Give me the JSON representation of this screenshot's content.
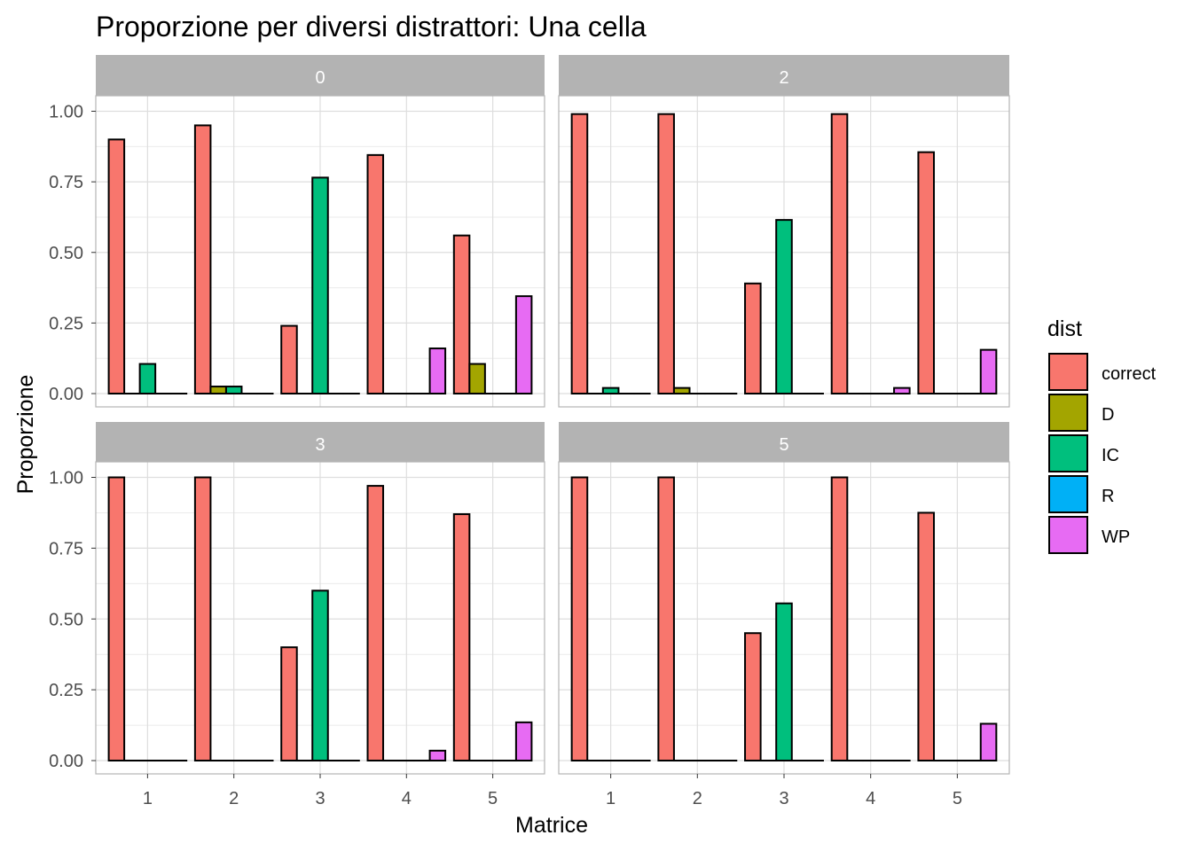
{
  "chart_data": {
    "type": "bar",
    "title": "Proporzione per diversi distrattori: Una cella",
    "xlabel": "Matrice",
    "ylabel": "Proporzione",
    "categories": [
      "1",
      "2",
      "3",
      "4",
      "5"
    ],
    "yticks": [
      "0.00",
      "0.25",
      "0.50",
      "0.75",
      "1.00"
    ],
    "ylim": [
      0,
      1.1
    ],
    "grid": true,
    "legend": {
      "title": "dist",
      "placement": "right",
      "entries": [
        {
          "label": "correct",
          "color": "#F8766D"
        },
        {
          "label": "D",
          "color": "#A3A500"
        },
        {
          "label": "IC",
          "color": "#00BF7D"
        },
        {
          "label": "R",
          "color": "#00B0F6"
        },
        {
          "label": "WP",
          "color": "#E76BF3"
        }
      ]
    },
    "panels": [
      {
        "label": "0",
        "series": [
          {
            "name": "correct",
            "values": [
              0.9,
              0.95,
              0.24,
              0.845,
              0.56
            ]
          },
          {
            "name": "D",
            "values": [
              0.0,
              0.025,
              0.0,
              0.0,
              0.105
            ]
          },
          {
            "name": "IC",
            "values": [
              0.105,
              0.025,
              0.765,
              0.0,
              0.0
            ]
          },
          {
            "name": "R",
            "values": [
              0.0,
              0.0,
              0.0,
              0.0,
              0.0
            ]
          },
          {
            "name": "WP",
            "values": [
              0.0,
              0.0,
              0.0,
              0.16,
              0.345
            ]
          }
        ]
      },
      {
        "label": "2",
        "series": [
          {
            "name": "correct",
            "values": [
              0.99,
              0.99,
              0.39,
              0.99,
              0.855
            ]
          },
          {
            "name": "D",
            "values": [
              0.0,
              0.02,
              0.0,
              0.0,
              0.0
            ]
          },
          {
            "name": "IC",
            "values": [
              0.02,
              0.0,
              0.615,
              0.0,
              0.0
            ]
          },
          {
            "name": "R",
            "values": [
              0.0,
              0.0,
              0.0,
              0.0,
              0.0
            ]
          },
          {
            "name": "WP",
            "values": [
              0.0,
              0.0,
              0.0,
              0.02,
              0.155
            ]
          }
        ]
      },
      {
        "label": "3",
        "series": [
          {
            "name": "correct",
            "values": [
              1.0,
              1.0,
              0.4,
              0.97,
              0.87
            ]
          },
          {
            "name": "D",
            "values": [
              0.0,
              0.0,
              0.0,
              0.0,
              0.0
            ]
          },
          {
            "name": "IC",
            "values": [
              0.0,
              0.0,
              0.6,
              0.0,
              0.0
            ]
          },
          {
            "name": "R",
            "values": [
              0.0,
              0.0,
              0.0,
              0.0,
              0.0
            ]
          },
          {
            "name": "WP",
            "values": [
              0.0,
              0.0,
              0.0,
              0.035,
              0.135
            ]
          }
        ]
      },
      {
        "label": "5",
        "series": [
          {
            "name": "correct",
            "values": [
              1.0,
              1.0,
              0.45,
              1.0,
              0.875
            ]
          },
          {
            "name": "D",
            "values": [
              0.0,
              0.0,
              0.0,
              0.0,
              0.0
            ]
          },
          {
            "name": "IC",
            "values": [
              0.0,
              0.0,
              0.555,
              0.0,
              0.0
            ]
          },
          {
            "name": "R",
            "values": [
              0.0,
              0.0,
              0.0,
              0.0,
              0.0
            ]
          },
          {
            "name": "WP",
            "values": [
              0.0,
              0.0,
              0.0,
              0.0,
              0.13
            ]
          }
        ]
      }
    ]
  }
}
